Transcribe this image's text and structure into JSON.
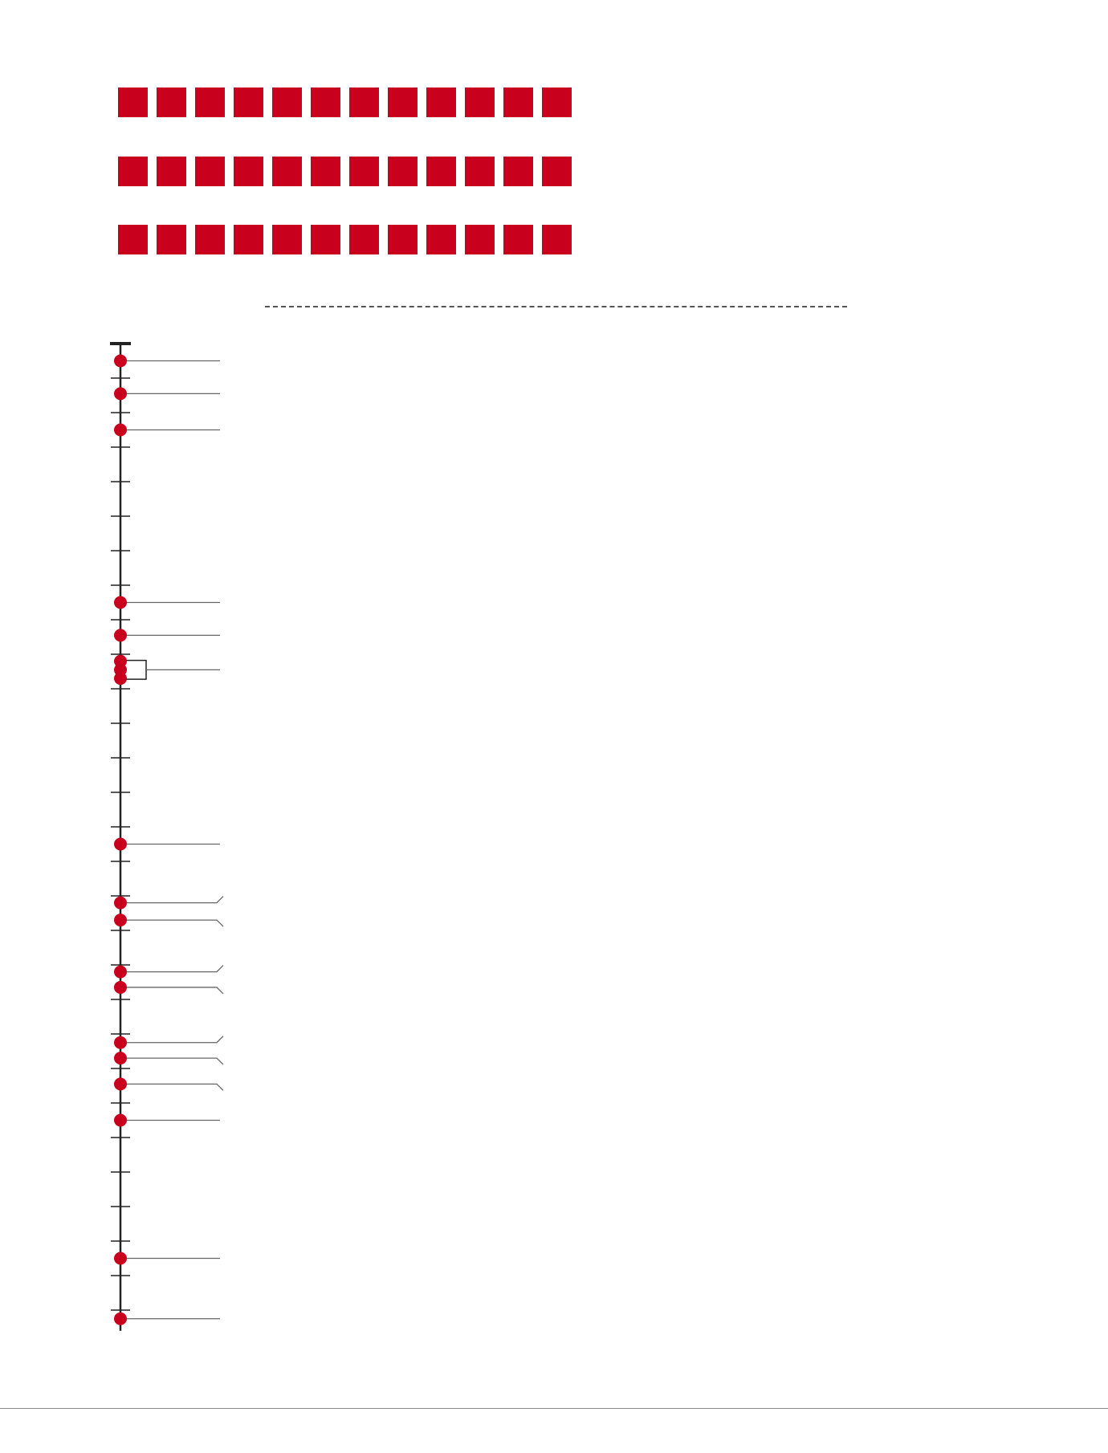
{
  "colors": {
    "accent": "#C8001E",
    "axis": "#222222",
    "leader": "#666666",
    "divider": "#555555"
  },
  "square_grid": {
    "rows": 3,
    "columns": 12,
    "color": "#C8001E"
  },
  "timeline": {
    "tick_count": 29,
    "markers": [
      {
        "tick": 0.5,
        "leader": "straight"
      },
      {
        "tick": 1.45,
        "leader": "straight"
      },
      {
        "tick": 2.5,
        "leader": "straight"
      },
      {
        "tick": 7.5,
        "leader": "straight"
      },
      {
        "tick": 8.45,
        "leader": "straight"
      },
      {
        "group": [
          9.2,
          9.45,
          9.7
        ],
        "leader": "bracket"
      },
      {
        "tick": 14.5,
        "leader": "straight"
      },
      {
        "tick": 16.2,
        "leader": "elbow-up"
      },
      {
        "tick": 16.7,
        "leader": "elbow-down"
      },
      {
        "tick": 18.2,
        "leader": "elbow-up"
      },
      {
        "tick": 18.65,
        "leader": "elbow-down"
      },
      {
        "tick": 20.25,
        "leader": "elbow-up"
      },
      {
        "tick": 20.7,
        "leader": "elbow-down"
      },
      {
        "tick": 21.45,
        "leader": "elbow-down"
      },
      {
        "tick": 22.5,
        "leader": "straight"
      },
      {
        "tick": 26.5,
        "leader": "straight"
      },
      {
        "tick": 28.25,
        "leader": "straight"
      }
    ]
  }
}
